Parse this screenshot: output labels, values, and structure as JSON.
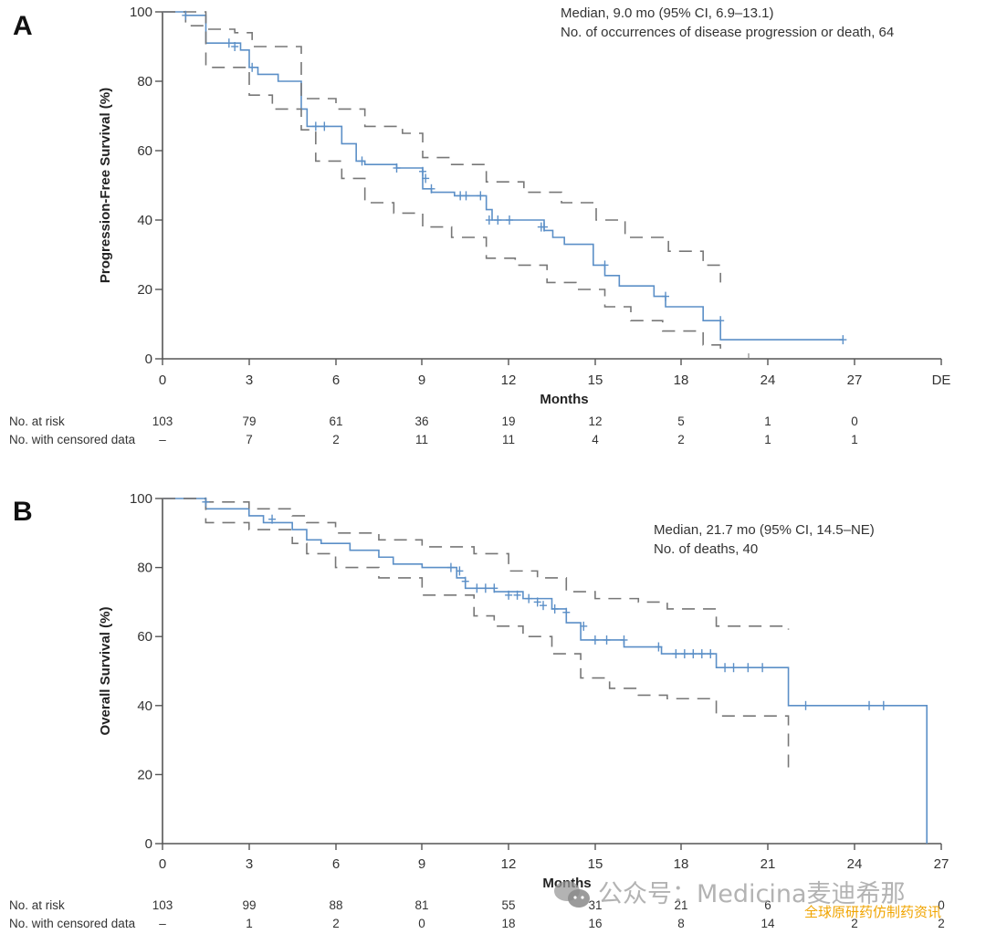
{
  "chart_data": [
    {
      "type": "line",
      "panel_label": "A",
      "title": "",
      "xlabel": "Months",
      "ylabel": "Progression-Free Survival (%)",
      "xticks": [
        "0",
        "3",
        "6",
        "9",
        "12",
        "15",
        "18",
        "24",
        "27",
        "DE"
      ],
      "yticks": [
        "0",
        "20",
        "40",
        "60",
        "80",
        "100"
      ],
      "ylim": [
        0,
        100
      ],
      "grid": false,
      "annotations": [
        "Median, 9.0 mo (95% CI, 6.9–13.1)",
        "No. of occurrences of disease progression or death, 64"
      ],
      "annotation_placement": "top-right",
      "series": [
        {
          "name": "PFS estimate",
          "style": "solid",
          "color": "#5b8fc7",
          "x": [
            0,
            0.8,
            1.5,
            2.7,
            3.0,
            3.3,
            4.0,
            4.8,
            5.0,
            5.3,
            6.2,
            6.7,
            7.0,
            8.1,
            9.0,
            9.3,
            10.1,
            11.2,
            11.4,
            13.2,
            13.5,
            13.9,
            14.9,
            15.3,
            15.8,
            17.0,
            17.4,
            18.7,
            19.3
          ],
          "y": [
            100,
            99,
            91,
            89,
            84,
            82,
            80,
            72,
            67,
            67,
            62,
            57,
            56,
            55,
            49,
            48,
            47,
            43,
            40,
            37,
            35,
            33,
            27,
            24,
            21,
            18,
            15,
            11,
            5.5
          ],
          "x_end": 26.6
        },
        {
          "name": "95% CI upper",
          "style": "dashed",
          "color": "#777777",
          "x": [
            0,
            1.5,
            2.5,
            3.1,
            4.8,
            6.0,
            7.0,
            8.3,
            9.0,
            10.0,
            11.2,
            12.5,
            13.8,
            15.0,
            16.0,
            17.5,
            18.7,
            19.3
          ],
          "y": [
            100,
            95,
            94,
            90,
            75,
            72,
            67,
            65,
            58,
            56,
            51,
            48,
            45,
            40,
            35,
            31,
            27,
            22
          ],
          "x_end": 19.3
        },
        {
          "name": "95% CI lower",
          "style": "dashed",
          "color": "#777777",
          "x": [
            0,
            0.8,
            1.5,
            3.0,
            3.8,
            4.8,
            5.3,
            6.2,
            7.0,
            8.0,
            9.0,
            10.0,
            11.2,
            12.2,
            13.3,
            14.3,
            15.3,
            16.2,
            17.3,
            18.7,
            19.3
          ],
          "y": [
            100,
            96,
            84,
            76,
            72,
            66,
            57,
            52,
            45,
            42,
            38,
            35,
            29,
            27,
            22,
            20,
            15,
            11,
            8,
            4,
            1
          ]
        },
        {
          "name": "Censored",
          "style": "marker",
          "color": "#5b8fc7",
          "x": [
            0.8,
            2.3,
            2.5,
            3.1,
            5.3,
            5.6,
            6.9,
            8.1,
            9.0,
            9.1,
            9.3,
            10.3,
            10.5,
            11.0,
            11.3,
            11.6,
            12.0,
            13.1,
            13.2,
            15.3,
            17.4,
            19.3,
            26.6
          ],
          "y": [
            99,
            91,
            90,
            84,
            67,
            67,
            57,
            55,
            54,
            52,
            49,
            47,
            47,
            47,
            40,
            40,
            40,
            38,
            38,
            27,
            18,
            11,
            5.5
          ]
        }
      ],
      "risk_table": {
        "rows": [
          {
            "label": "No. at risk",
            "values": [
              "103",
              "79",
              "61",
              "36",
              "19",
              "12",
              "5",
              "1",
              "0"
            ]
          },
          {
            "label": "No. with censored data",
            "values": [
              "–",
              "7",
              "2",
              "11",
              "11",
              "4",
              "2",
              "1",
              "1"
            ]
          }
        ]
      }
    },
    {
      "type": "line",
      "panel_label": "B",
      "title": "",
      "xlabel": "Months",
      "ylabel": "Overall Survival (%)",
      "xticks": [
        "0",
        "3",
        "6",
        "9",
        "12",
        "15",
        "18",
        "21",
        "24",
        "27"
      ],
      "yticks": [
        "0",
        "20",
        "40",
        "60",
        "80",
        "100"
      ],
      "ylim": [
        0,
        100
      ],
      "xlim": [
        0,
        27
      ],
      "grid": false,
      "annotations": [
        "Median, 21.7 mo (95% CI, 14.5–NE)",
        "No. of deaths, 40"
      ],
      "annotation_placement": "top-right",
      "series": [
        {
          "name": "OS estimate",
          "style": "solid",
          "color": "#5b8fc7",
          "x": [
            0,
            1.5,
            3.0,
            3.5,
            4.5,
            5.0,
            5.5,
            6.5,
            7.5,
            8.0,
            9.0,
            10.2,
            10.5,
            11.5,
            12.5,
            13.5,
            14.0,
            14.5,
            16.0,
            17.3,
            19.2,
            21.7,
            26.5
          ],
          "y": [
            100,
            97,
            95,
            93,
            91,
            88,
            87,
            85,
            83,
            81,
            80,
            77,
            74,
            73,
            71,
            68,
            64,
            59,
            57,
            55,
            51,
            40,
            0
          ],
          "x_end": 26.5
        },
        {
          "name": "95% CI upper",
          "style": "dashed",
          "color": "#777777",
          "x": [
            0,
            1.5,
            3.0,
            4.5,
            5.0,
            6.0,
            7.5,
            9.0,
            10.8,
            12.0,
            13.0,
            14.0,
            15.0,
            16.5,
            17.5,
            19.2,
            21.7
          ],
          "y": [
            100,
            99,
            97,
            95,
            93,
            90,
            88,
            86,
            84,
            79,
            77,
            73,
            71,
            70,
            68,
            63,
            62
          ],
          "x_end": 21.7
        },
        {
          "name": "95% CI lower",
          "style": "dashed",
          "color": "#777777",
          "x": [
            0,
            1.5,
            3.0,
            4.5,
            5.0,
            6.0,
            7.5,
            9.0,
            10.8,
            11.5,
            12.5,
            13.5,
            14.5,
            15.5,
            16.5,
            17.5,
            19.2,
            21.7
          ],
          "y": [
            100,
            93,
            91,
            87,
            84,
            80,
            77,
            72,
            66,
            63,
            60,
            55,
            48,
            45,
            43,
            42,
            37,
            21
          ],
          "x_end": 21.7
        },
        {
          "name": "Censored",
          "style": "marker",
          "color": "#5b8fc7",
          "x": [
            1.5,
            3.8,
            10.0,
            10.3,
            10.5,
            10.9,
            11.2,
            11.5,
            12.0,
            12.3,
            12.7,
            13.0,
            13.2,
            13.6,
            14.0,
            14.6,
            15.0,
            15.4,
            16.0,
            17.2,
            17.8,
            18.1,
            18.4,
            18.7,
            19.0,
            19.5,
            19.8,
            20.3,
            20.8,
            22.3,
            24.5,
            25.0
          ],
          "y": [
            99,
            94,
            80,
            79,
            76,
            74,
            74,
            74,
            72,
            72,
            71,
            70,
            69,
            68,
            67,
            63,
            59,
            59,
            59,
            57,
            55,
            55,
            55,
            55,
            55,
            51,
            51,
            51,
            51,
            40,
            40,
            40
          ]
        }
      ],
      "risk_table": {
        "rows": [
          {
            "label": "No. at risk",
            "values": [
              "103",
              "99",
              "88",
              "81",
              "55",
              "31",
              "21",
              "6",
              "",
              "0"
            ]
          },
          {
            "label": "No. with censored data",
            "values": [
              "–",
              "1",
              "2",
              "0",
              "18",
              "16",
              "8",
              "14",
              "2",
              "2"
            ]
          }
        ]
      }
    }
  ],
  "watermark": {
    "main_text": "公众号：Medicina麦迪希那",
    "sub_text": "全球原研药仿制药资讯",
    "icon": "wechat-icon"
  }
}
